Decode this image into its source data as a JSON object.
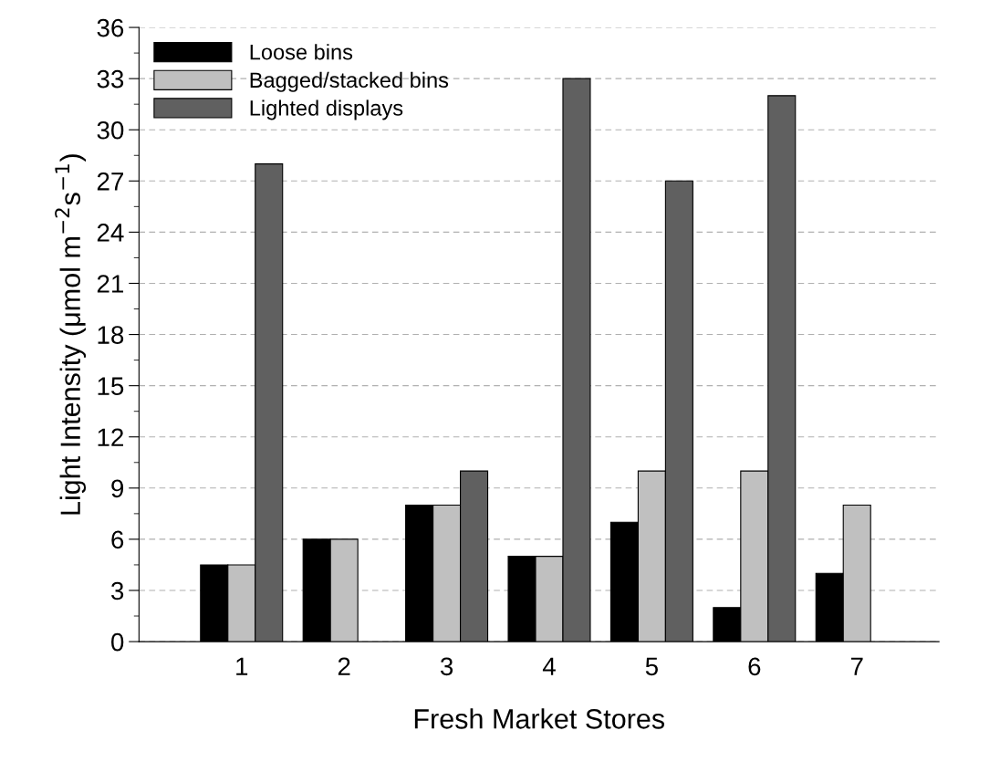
{
  "chart_data": {
    "type": "bar",
    "xlabel": "Fresh Market Stores",
    "ylabel": "Light Intensity (μmol m$^{−2}$s$^{−1}$)",
    "categories": [
      "1",
      "2",
      "3",
      "4",
      "5",
      "6",
      "7"
    ],
    "series": [
      {
        "name": "Loose bins",
        "color": "#000000",
        "values": [
          4.5,
          6,
          8,
          5,
          7,
          2,
          4
        ]
      },
      {
        "name": "Bagged/stacked bins",
        "color": "#c0c0c0",
        "values": [
          4.5,
          6,
          8,
          5,
          10,
          10,
          8
        ]
      },
      {
        "name": "Lighted displays",
        "color": "#606060",
        "values": [
          28,
          null,
          10,
          33,
          27,
          32,
          null
        ]
      }
    ],
    "ylim": [
      0,
      36
    ],
    "yticks": [
      0,
      3,
      6,
      9,
      12,
      15,
      18,
      21,
      24,
      27,
      30,
      33,
      36
    ],
    "grid": "y",
    "legend": "top left"
  }
}
